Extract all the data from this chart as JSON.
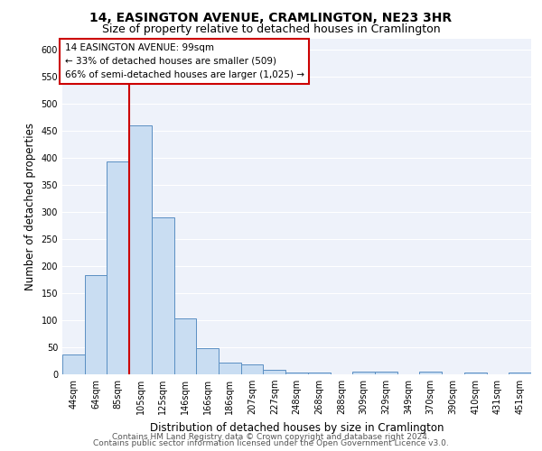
{
  "title": "14, EASINGTON AVENUE, CRAMLINGTON, NE23 3HR",
  "subtitle": "Size of property relative to detached houses in Cramlington",
  "xlabel": "Distribution of detached houses by size in Cramlington",
  "ylabel": "Number of detached properties",
  "categories": [
    "44sqm",
    "64sqm",
    "85sqm",
    "105sqm",
    "125sqm",
    "146sqm",
    "166sqm",
    "186sqm",
    "207sqm",
    "227sqm",
    "248sqm",
    "268sqm",
    "288sqm",
    "309sqm",
    "329sqm",
    "349sqm",
    "370sqm",
    "390sqm",
    "410sqm",
    "431sqm",
    "451sqm"
  ],
  "values": [
    37,
    183,
    393,
    460,
    289,
    103,
    48,
    21,
    18,
    8,
    3,
    4,
    0,
    5,
    5,
    0,
    5,
    0,
    4,
    0,
    4
  ],
  "bar_color": "#c9ddf2",
  "bar_edge_color": "#5a8fc3",
  "marker_line_color": "#cc0000",
  "annotation_line1": "14 EASINGTON AVENUE: 99sqm",
  "annotation_line2": "← 33% of detached houses are smaller (509)",
  "annotation_line3": "66% of semi-detached houses are larger (1,025) →",
  "annotation_box_color": "#cc0000",
  "ylim": [
    0,
    620
  ],
  "yticks": [
    0,
    50,
    100,
    150,
    200,
    250,
    300,
    350,
    400,
    450,
    500,
    550,
    600
  ],
  "footer1": "Contains HM Land Registry data © Crown copyright and database right 2024.",
  "footer2": "Contains public sector information licensed under the Open Government Licence v3.0.",
  "bg_color": "#eef2fa",
  "grid_color": "#ffffff",
  "title_fontsize": 10,
  "subtitle_fontsize": 9,
  "axis_label_fontsize": 8.5,
  "tick_fontsize": 7,
  "footer_fontsize": 6.5,
  "annotation_fontsize": 7.5
}
